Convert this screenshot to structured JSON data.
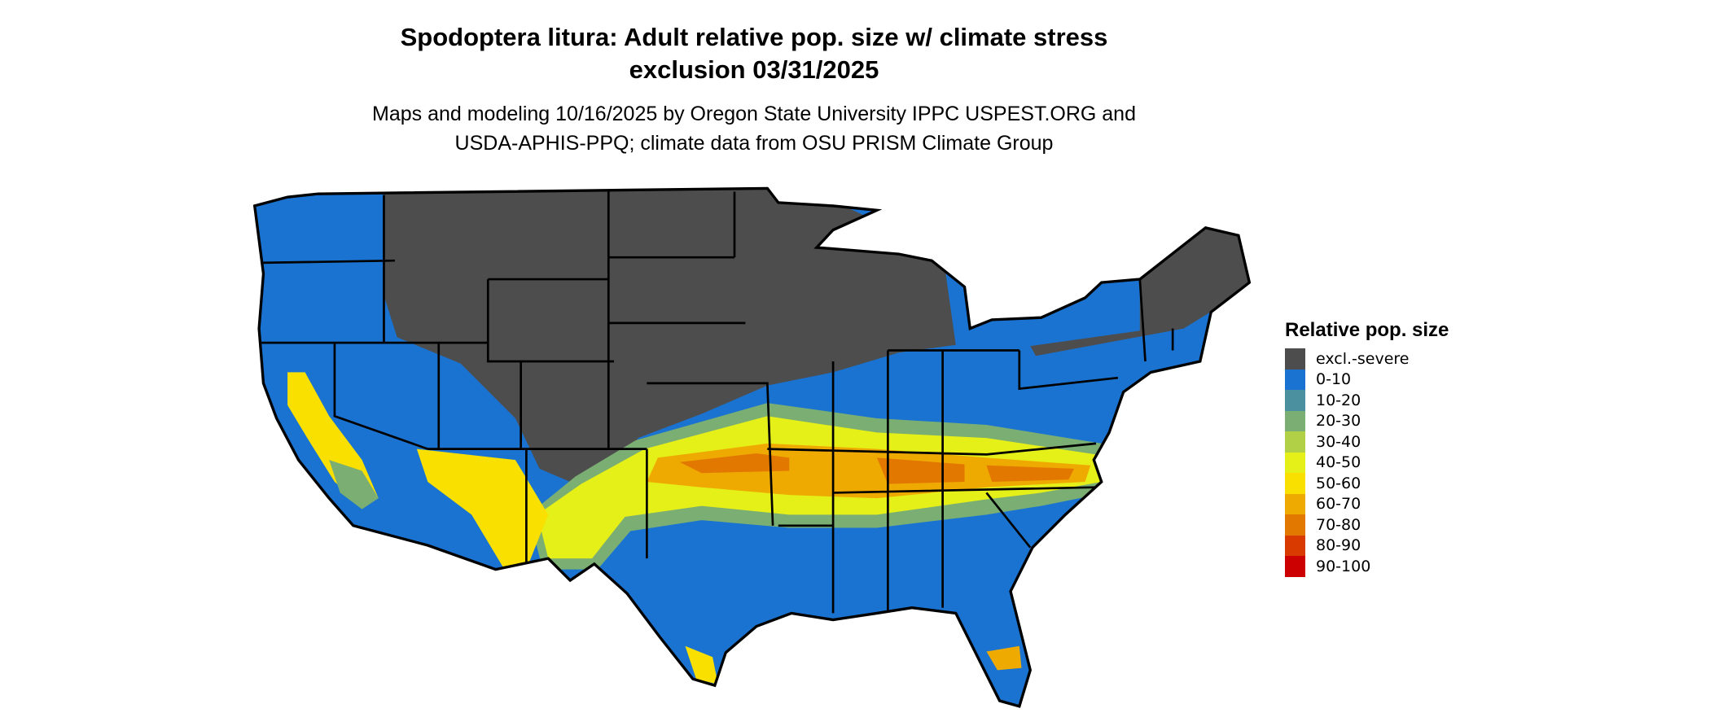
{
  "title_line1": "Spodoptera litura: Adult relative pop. size w/ climate stress",
  "title_line2": "exclusion 03/31/2025",
  "subtitle_line1": "Maps and modeling 10/16/2025 by Oregon State University IPPC USPEST.ORG and",
  "subtitle_line2": "USDA-APHIS-PPQ; climate data from OSU PRISM Climate Group",
  "legend": {
    "title": "Relative pop. size",
    "items": [
      {
        "label": "excl.-severe",
        "color": "#4d4d4d"
      },
      {
        "label": "0-10",
        "color": "#1a73d0"
      },
      {
        "label": "10-20",
        "color": "#4a909e"
      },
      {
        "label": "20-30",
        "color": "#7bae72"
      },
      {
        "label": "30-40",
        "color": "#b2d045"
      },
      {
        "label": "40-50",
        "color": "#e5ef18"
      },
      {
        "label": "50-60",
        "color": "#f9e000"
      },
      {
        "label": "60-70",
        "color": "#eeaa00"
      },
      {
        "label": "70-80",
        "color": "#e37800"
      },
      {
        "label": "80-90",
        "color": "#d93a00"
      },
      {
        "label": "90-100",
        "color": "#cc0000"
      }
    ]
  }
}
